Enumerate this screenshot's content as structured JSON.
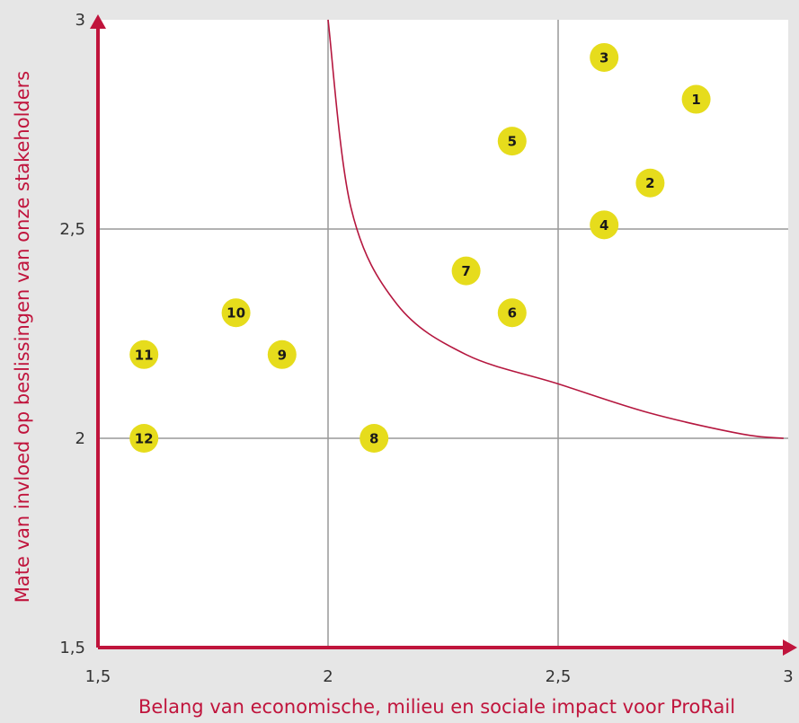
{
  "chart_data": {
    "type": "scatter",
    "title": "",
    "xlabel": "Belang van economische, milieu en sociale impact voor ProRail",
    "ylabel": "Mate van invloed op beslissingen van onze stakeholders",
    "xlim": [
      1.5,
      3
    ],
    "ylim": [
      1.5,
      3
    ],
    "x_ticks": [
      "1,5",
      "2",
      "2,5",
      "3"
    ],
    "y_ticks": [
      "1,5",
      "2",
      "2,5",
      "3"
    ],
    "x_tick_values": [
      1.5,
      2,
      2.5,
      3
    ],
    "y_tick_values": [
      1.5,
      2,
      2.5,
      3
    ],
    "gridlines": [
      2,
      2.5
    ],
    "grid": true,
    "points": [
      {
        "label": "1",
        "x": 2.8,
        "y": 2.81
      },
      {
        "label": "2",
        "x": 2.7,
        "y": 2.61
      },
      {
        "label": "3",
        "x": 2.6,
        "y": 2.91
      },
      {
        "label": "4",
        "x": 2.6,
        "y": 2.51
      },
      {
        "label": "5",
        "x": 2.4,
        "y": 2.71
      },
      {
        "label": "6",
        "x": 2.4,
        "y": 2.3
      },
      {
        "label": "7",
        "x": 2.3,
        "y": 2.4
      },
      {
        "label": "8",
        "x": 2.1,
        "y": 2.0
      },
      {
        "label": "9",
        "x": 1.9,
        "y": 2.2
      },
      {
        "label": "10",
        "x": 1.8,
        "y": 2.3
      },
      {
        "label": "11",
        "x": 1.6,
        "y": 2.2
      },
      {
        "label": "12",
        "x": 1.6,
        "y": 2.0
      }
    ],
    "threshold_curve": {
      "description": "materiality boundary",
      "points": [
        [
          2.0,
          3.0
        ],
        [
          2.05,
          2.55
        ],
        [
          2.15,
          2.32
        ],
        [
          2.3,
          2.2
        ],
        [
          2.5,
          2.13
        ],
        [
          2.7,
          2.06
        ],
        [
          2.9,
          2.01
        ],
        [
          2.99,
          2.0
        ]
      ]
    },
    "colors": {
      "axis": "#c0143c",
      "curve": "#b5173f",
      "point_fill": "#e6dc1c",
      "grid": "#999999",
      "plot_bg": "#ffffff",
      "page_bg": "#e6e6e6",
      "label_text": "#c0143c"
    }
  }
}
